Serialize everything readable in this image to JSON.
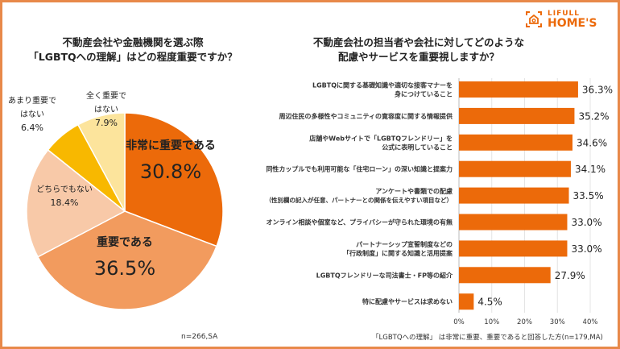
{
  "brand": {
    "logo_line1": "LIFULL",
    "logo_line2": "HOME'S",
    "accent": "#EC6A0A"
  },
  "chart_data": [
    {
      "type": "pie",
      "title": [
        "不動産会社や金融機関を選ぶ際",
        "「LGBTQへの理解」はどの程度重要ですか？"
      ],
      "slices": [
        {
          "label": [
            "非常に重要である"
          ],
          "value": 30.8,
          "value_label": "30.8%",
          "color": "#EC6A0A"
        },
        {
          "label": [
            "重要である"
          ],
          "value": 36.5,
          "value_label": "36.5%",
          "color": "#F29B5E"
        },
        {
          "label": [
            "どちらでもない"
          ],
          "value": 18.4,
          "value_label": "18.4%",
          "color": "#F8C9A8"
        },
        {
          "label": [
            "あまり重要で",
            "はない"
          ],
          "value": 6.4,
          "value_label": "6.4%",
          "color": "#F8B800"
        },
        {
          "label": [
            "全く重要で",
            "はない"
          ],
          "value": 7.9,
          "value_label": "7.9%",
          "color": "#FCE49C"
        }
      ],
      "note": "n=266,SA"
    },
    {
      "type": "bar",
      "orientation": "horizontal",
      "title": [
        "不動産会社の担当者や会社に対してどのような",
        "配慮やサービスを重要視しますか？"
      ],
      "categories": [
        [
          "LGBTQに関する基礎知識や適切な接客マナーを",
          "身につけていること"
        ],
        [
          "周辺住民の多様性やコミュニティの寛容度に関する情報提供"
        ],
        [
          "店舗やWebサイトで「LGBTQフレンドリー」を",
          "公式に表明していること"
        ],
        [
          "同性カップルでも利用可能な「住宅ローン」の深い知識と提案力"
        ],
        [
          "アンケートや書類での配慮",
          "（性別欄の記入が任意、パートナーとの関係を伝えやすい項目など）"
        ],
        [
          "オンライン相談や個室など、プライバシーが守られた環境の有無"
        ],
        [
          "パートナーシップ宣誓制度などの",
          "「行政制度」に関する知識と活用提案"
        ],
        [
          "LGBTQフレンドリーな司法書士・FP等の紹介"
        ],
        [
          "特に配慮やサービスは求めない"
        ]
      ],
      "values": [
        36.3,
        35.2,
        34.6,
        34.1,
        33.5,
        33.0,
        33.0,
        27.9,
        4.5
      ],
      "value_labels": [
        "36.3%",
        "35.2%",
        "34.6%",
        "34.1%",
        "33.5%",
        "33.0%",
        "33.0%",
        "27.9%",
        "4.5%"
      ],
      "xlim": [
        0,
        40
      ],
      "xticks": [
        "0%",
        "10%",
        "20%",
        "30%",
        "40%"
      ],
      "grid": true,
      "color": "#EC6A0A",
      "note": "「LGBTQへの理解」 は非常に重要、重要であると回答した方(n=179,MA)"
    }
  ]
}
